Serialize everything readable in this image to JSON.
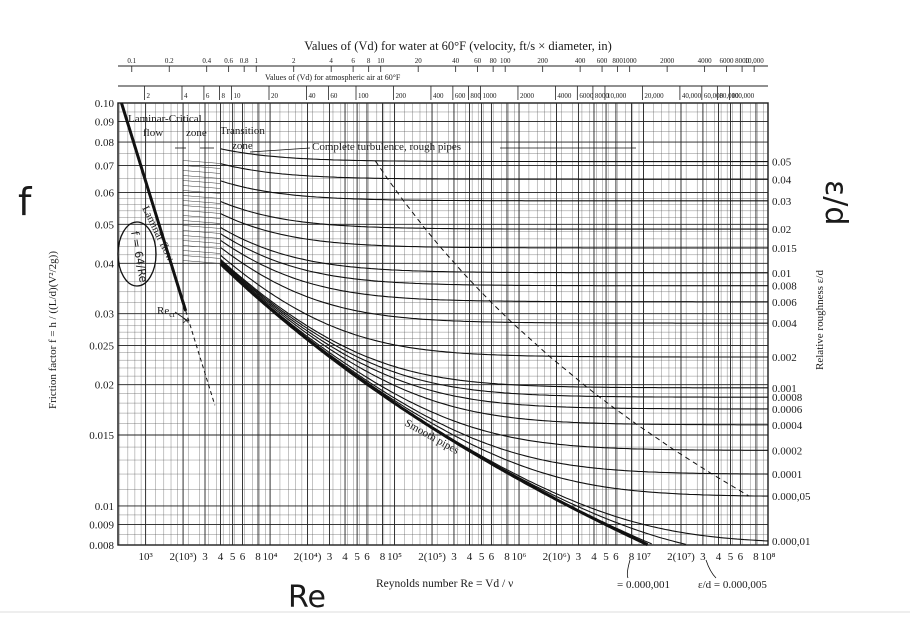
{
  "chart_data": {
    "type": "line",
    "title": "Values of (Vd) for water at 60°F (velocity, ft/s × diameter, in)",
    "subtitle": "Values of (Vd) for atmospheric air at 60°F",
    "xlabel": "Reynolds number Re = Vd / ν",
    "ylabel": "Friction factor f = h / ((L/d)(V²/2g))",
    "right_label": "Relative roughness ε/d",
    "x_scale": "log",
    "y_scale": "log",
    "xlim": [
      600,
      100000000
    ],
    "ylim": [
      0.008,
      0.1
    ],
    "grid": true,
    "x_ticks": [
      {
        "value": 1000,
        "label": "10³"
      },
      {
        "value": 2000,
        "label": "2(10³)"
      },
      {
        "value": 3000,
        "label": "3"
      },
      {
        "value": 4000,
        "label": "4"
      },
      {
        "value": 5000,
        "label": "5"
      },
      {
        "value": 6000,
        "label": "6"
      },
      {
        "value": 8000,
        "label": "8"
      },
      {
        "value": 10000,
        "label": "10⁴"
      },
      {
        "value": 20000,
        "label": "2(10⁴)"
      },
      {
        "value": 30000,
        "label": "3"
      },
      {
        "value": 40000,
        "label": "4"
      },
      {
        "value": 50000,
        "label": "5"
      },
      {
        "value": 60000,
        "label": "6"
      },
      {
        "value": 80000,
        "label": "8"
      },
      {
        "value": 100000,
        "label": "10⁵"
      },
      {
        "value": 200000,
        "label": "2(10⁵)"
      },
      {
        "value": 300000,
        "label": "3"
      },
      {
        "value": 400000,
        "label": "4"
      },
      {
        "value": 500000,
        "label": "5"
      },
      {
        "value": 600000,
        "label": "6"
      },
      {
        "value": 800000,
        "label": "8"
      },
      {
        "value": 1000000,
        "label": "10⁶"
      },
      {
        "value": 2000000,
        "label": "2(10⁶)"
      },
      {
        "value": 3000000,
        "label": "3"
      },
      {
        "value": 4000000,
        "label": "4"
      },
      {
        "value": 5000000,
        "label": "5"
      },
      {
        "value": 6000000,
        "label": "6"
      },
      {
        "value": 8000000,
        "label": "8"
      },
      {
        "value": 10000000,
        "label": "10⁷"
      },
      {
        "value": 20000000,
        "label": "2(10⁷)"
      },
      {
        "value": 30000000,
        "label": "3"
      },
      {
        "value": 40000000,
        "label": "4"
      },
      {
        "value": 50000000,
        "label": "5"
      },
      {
        "value": 60000000,
        "label": "6"
      },
      {
        "value": 80000000,
        "label": "8"
      },
      {
        "value": 100000000,
        "label": "10⁸"
      }
    ],
    "y_ticks": [
      {
        "value": 0.1,
        "label": "0.10"
      },
      {
        "value": 0.09,
        "label": "0.09"
      },
      {
        "value": 0.08,
        "label": "0.08"
      },
      {
        "value": 0.07,
        "label": "0.07"
      },
      {
        "value": 0.06,
        "label": "0.06"
      },
      {
        "value": 0.05,
        "label": "0.05"
      },
      {
        "value": 0.04,
        "label": "0.04"
      },
      {
        "value": 0.03,
        "label": "0.03"
      },
      {
        "value": 0.025,
        "label": "0.025"
      },
      {
        "value": 0.02,
        "label": "0.02"
      },
      {
        "value": 0.015,
        "label": "0.015"
      },
      {
        "value": 0.01,
        "label": "0.01"
      },
      {
        "value": 0.009,
        "label": "0.009"
      },
      {
        "value": 0.008,
        "label": "0.008"
      }
    ],
    "top_scale_water": [
      {
        "value": 0.1,
        "label": "0.1"
      },
      {
        "value": 0.2,
        "label": "0.2"
      },
      {
        "value": 0.4,
        "label": "0.4"
      },
      {
        "value": 0.6,
        "label": "0.6"
      },
      {
        "value": 0.8,
        "label": "0.8"
      },
      {
        "value": 1,
        "label": "1"
      },
      {
        "value": 2,
        "label": "2"
      },
      {
        "value": 4,
        "label": "4"
      },
      {
        "value": 6,
        "label": "6"
      },
      {
        "value": 8,
        "label": "8"
      },
      {
        "value": 10,
        "label": "10"
      },
      {
        "value": 20,
        "label": "20"
      },
      {
        "value": 40,
        "label": "40"
      },
      {
        "value": 60,
        "label": "60"
      },
      {
        "value": 80,
        "label": "80"
      },
      {
        "value": 100,
        "label": "100"
      },
      {
        "value": 200,
        "label": "200"
      },
      {
        "value": 400,
        "label": "400"
      },
      {
        "value": 600,
        "label": "600"
      },
      {
        "value": 800,
        "label": "800"
      },
      {
        "value": 1000,
        "label": "1000"
      },
      {
        "value": 2000,
        "label": "2000"
      },
      {
        "value": 4000,
        "label": "4000"
      },
      {
        "value": 6000,
        "label": "6000"
      },
      {
        "value": 8000,
        "label": "8000"
      },
      {
        "value": 10000,
        "label": "10,000"
      }
    ],
    "top_scale_air": [
      {
        "value": 2,
        "label": "2"
      },
      {
        "value": 4,
        "label": "4"
      },
      {
        "value": 6,
        "label": "6"
      },
      {
        "value": 8,
        "label": "8"
      },
      {
        "value": 10,
        "label": "10"
      },
      {
        "value": 20,
        "label": "20"
      },
      {
        "value": 40,
        "label": "40"
      },
      {
        "value": 60,
        "label": "60"
      },
      {
        "value": 100,
        "label": "100"
      },
      {
        "value": 200,
        "label": "200"
      },
      {
        "value": 400,
        "label": "400"
      },
      {
        "value": 600,
        "label": "600"
      },
      {
        "value": 800,
        "label": "800"
      },
      {
        "value": 1000,
        "label": "1000"
      },
      {
        "value": 2000,
        "label": "2000"
      },
      {
        "value": 4000,
        "label": "4000"
      },
      {
        "value": 6000,
        "label": "6000"
      },
      {
        "value": 8000,
        "label": "8000"
      },
      {
        "value": 10000,
        "label": "10,000"
      },
      {
        "value": 20000,
        "label": "20,000"
      },
      {
        "value": 40000,
        "label": "40,000"
      },
      {
        "value": 60000,
        "label": "60,000"
      },
      {
        "value": 80000,
        "label": "80,000"
      },
      {
        "value": 100000,
        "label": "100,000"
      }
    ],
    "roughness_curves": [
      {
        "label": "0.05",
        "value": 0.05
      },
      {
        "label": "0.04",
        "value": 0.04
      },
      {
        "label": "0.03",
        "value": 0.03
      },
      {
        "label": "0.02",
        "value": 0.02
      },
      {
        "label": "0.015",
        "value": 0.015
      },
      {
        "label": "0.01",
        "value": 0.01
      },
      {
        "label": "0.008",
        "value": 0.008
      },
      {
        "label": "0.006",
        "value": 0.006
      },
      {
        "label": "0.004",
        "value": 0.004
      },
      {
        "label": "0.002",
        "value": 0.002
      },
      {
        "label": "0.001",
        "value": 0.001
      },
      {
        "label": "0.0008",
        "value": 0.0008
      },
      {
        "label": "0.0006",
        "value": 0.0006
      },
      {
        "label": "0.0004",
        "value": 0.0004
      },
      {
        "label": "0.0002",
        "value": 0.0002
      },
      {
        "label": "0.0001",
        "value": 0.0001
      },
      {
        "label": "0.000,05",
        "value": 5e-05
      },
      {
        "label": "0.000,01",
        "value": 1e-05
      },
      {
        "label": "",
        "value": 5e-06
      },
      {
        "label": "",
        "value": 1e-06
      }
    ],
    "annotations": {
      "laminar_critical": "Laminar-Critical",
      "flow": "flow",
      "zone": "zone",
      "transition": "Transition",
      "transition_zone": "zone",
      "complete_turbulence": "Complete turbulence, rough pipes",
      "laminar_flow": "Laminar flow",
      "laminar_formula": "f = 64/Re",
      "re_cr": "Re",
      "re_cr_sub": "cr",
      "smooth_pipes": "Smooth pipes",
      "bottom_eps_1": "= 0.000,001",
      "bottom_eps_5": "ε/d = 0.000,005"
    },
    "handwriting": {
      "f_mark": "f",
      "eps_d_mark": "ε/d",
      "re_mark": "Re"
    }
  }
}
